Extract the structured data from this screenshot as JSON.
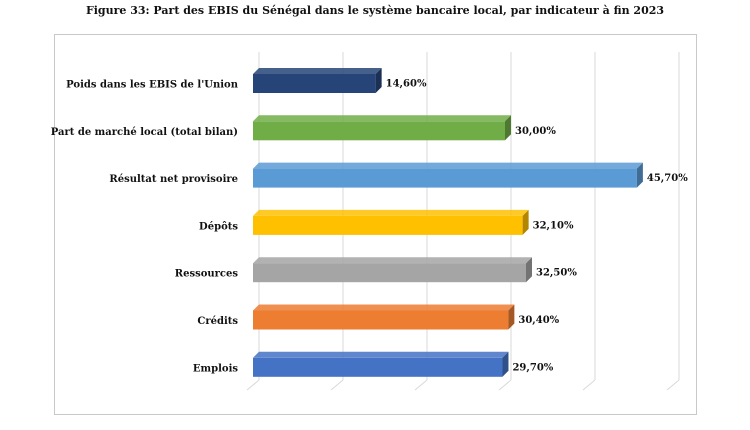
{
  "figure_title": "Figure 33: Part des EBIS du Sénégal dans le système bancaire local, par indicateur à fin 2023",
  "chart_data": {
    "type": "bar",
    "orientation": "horizontal",
    "style": "3d",
    "title": "Figure 33: Part des EBIS du Sénégal dans le système bancaire local, par indicateur à fin 2023",
    "categories": [
      "Poids dans les EBIS de l'Union",
      "Part de marché local (total bilan)",
      "Résultat net provisoire",
      "Dépôts",
      "Ressources",
      "Crédits",
      "Emplois"
    ],
    "values": [
      14.6,
      30.0,
      45.7,
      32.1,
      32.5,
      30.4,
      29.7
    ],
    "value_labels": [
      "14,60%",
      "30,00%",
      "45,70%",
      "32,10%",
      "32,50%",
      "30,40%",
      "29,70%"
    ],
    "colors": [
      "#264478",
      "#70AD47",
      "#5B9BD5",
      "#FFC000",
      "#A5A5A5",
      "#ED7D31",
      "#4472C4"
    ],
    "xlim": [
      0,
      50
    ],
    "grid": true,
    "legend": "none",
    "xlabel": "",
    "ylabel": ""
  }
}
